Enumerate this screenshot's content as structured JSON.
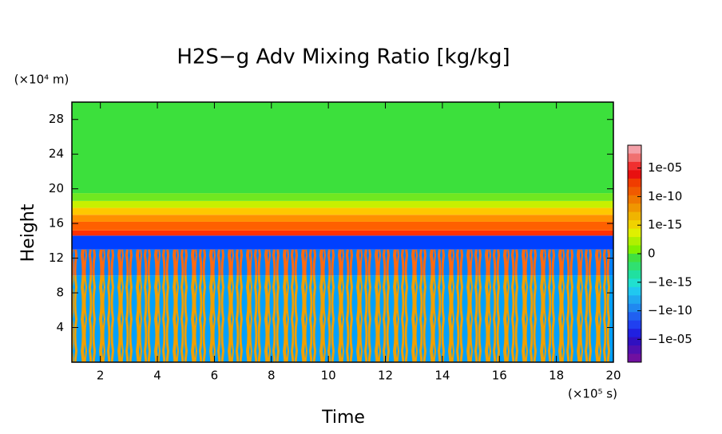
{
  "chart_data": {
    "type": "contour",
    "title": "H2S−g Adv Mixing Ratio [kg/kg]",
    "x_label": "Time",
    "y_label": "Height",
    "x_unit": "(×10⁵ s)",
    "y_unit": "(×10⁴ m)",
    "xlim": [
      1,
      20
    ],
    "xticks": [
      2,
      4,
      6,
      8,
      10,
      12,
      14,
      16,
      18,
      20
    ],
    "ylim": [
      0,
      30
    ],
    "yticks": [
      4,
      8,
      12,
      16,
      20,
      24,
      28
    ],
    "layers": [
      {
        "y0": 0,
        "y1": 10,
        "colors": [
          "#00a0ff",
          "#f0a000"
        ]
      },
      {
        "y0": 10,
        "y1": 13,
        "colors": [
          "#0080ff",
          "#ff6a10"
        ]
      },
      {
        "y0": 13,
        "y1": 14.6,
        "colors": [
          "#0040ff"
        ]
      },
      {
        "y0": 14.6,
        "y1": 15.2,
        "colors": [
          "#ff3000"
        ]
      },
      {
        "y0": 15.2,
        "y1": 16.2,
        "colors": [
          "#ff6000"
        ]
      },
      {
        "y0": 16.2,
        "y1": 17,
        "colors": [
          "#ff9000"
        ]
      },
      {
        "y0": 17,
        "y1": 17.8,
        "colors": [
          "#ffc800"
        ]
      },
      {
        "y0": 17.8,
        "y1": 18.6,
        "colors": [
          "#c8f000"
        ]
      },
      {
        "y0": 18.6,
        "y1": 19.5,
        "colors": [
          "#70e820"
        ]
      },
      {
        "y0": 19.5,
        "y1": 30,
        "colors": [
          "#3ce03c"
        ]
      }
    ],
    "colorbar": {
      "clim": [
        -0.1,
        0.1
      ],
      "colors": [
        "#f4a0a8",
        "#f07070",
        "#f03030",
        "#e81010",
        "#f03c00",
        "#f05a00",
        "#f07800",
        "#f09600",
        "#f0b400",
        "#f0d200",
        "#e0f000",
        "#b0f000",
        "#80f000",
        "#40e040",
        "#30e070",
        "#20e0a0",
        "#20e0d0",
        "#20c8f0",
        "#20a8f0",
        "#2088f0",
        "#2060f0",
        "#2040f0",
        "#2020e0",
        "#3010c0",
        "#5010b0",
        "#7010a0"
      ],
      "ticks": [
        {
          "value": 1e-05,
          "label": "1e-05"
        },
        {
          "value": 1e-10,
          "label": "1e-10"
        },
        {
          "value": 1e-15,
          "label": "1e-15"
        },
        0,
        {
          "value": -1e-15,
          "label": "−1e-15"
        },
        {
          "value": -1e-10,
          "label": "−1e-10"
        },
        {
          "value": -1e-05,
          "label": "−1e-05"
        }
      ]
    }
  }
}
